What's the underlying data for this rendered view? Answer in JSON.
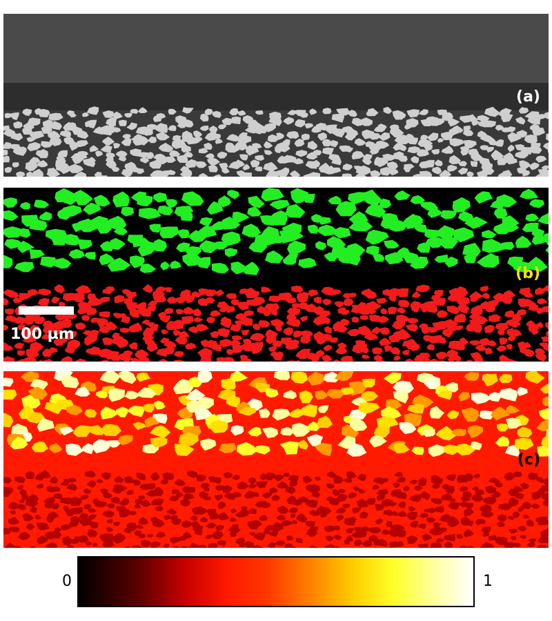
{
  "panels": {
    "a": {
      "label": "(a)"
    },
    "b": {
      "label": "(b)",
      "scale_bar_label": "100 µm"
    },
    "c": {
      "label": "(c)"
    }
  },
  "colorbar": {
    "min_label": "0",
    "max_label": "1"
  },
  "colors": {
    "sem_background": "#4a4a4a",
    "sem_gap": "#2d2d2d",
    "sem_particle": "#cfcfcf",
    "seg_top_particle": "#22ee22",
    "seg_bottom_particle": "#f21a1a",
    "map_background": "#ff1a00",
    "map_bottom_particle": "#b30000"
  }
}
